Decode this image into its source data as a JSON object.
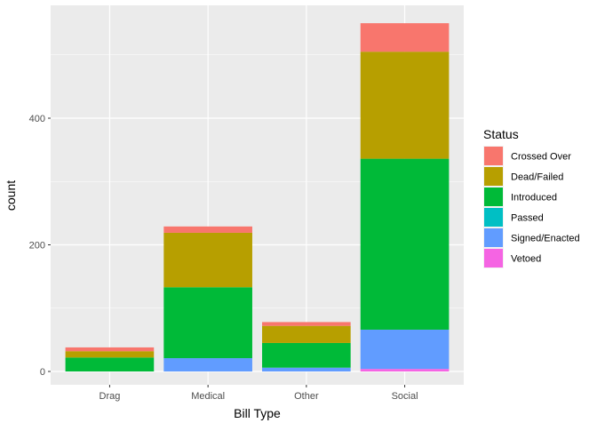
{
  "chart_data": {
    "type": "bar",
    "stacked": true,
    "xlabel": "Bill Type",
    "ylabel": "count",
    "categories": [
      "Drag",
      "Medical",
      "Other",
      "Social"
    ],
    "ylim": [
      -20,
      570
    ],
    "yticks": [
      0,
      200,
      400
    ],
    "grid": true,
    "legend_title": "Status",
    "legend_position": "right",
    "series": [
      {
        "name": "Vetoed",
        "color": "#F564E3",
        "values": [
          0,
          0,
          0,
          4
        ]
      },
      {
        "name": "Signed/Enacted",
        "color": "#619CFF",
        "values": [
          0,
          21,
          6,
          62
        ]
      },
      {
        "name": "Passed",
        "color": "#00BFC4",
        "values": [
          0,
          0,
          0,
          0
        ]
      },
      {
        "name": "Introduced",
        "color": "#00BA38",
        "values": [
          22,
          112,
          39,
          270
        ]
      },
      {
        "name": "Dead/Failed",
        "color": "#B79F00",
        "values": [
          10,
          86,
          27,
          169
        ]
      },
      {
        "name": "Crossed Over",
        "color": "#F8766D",
        "values": [
          6,
          10,
          6,
          45
        ]
      }
    ],
    "legend_order": [
      "Crossed Over",
      "Dead/Failed",
      "Introduced",
      "Passed",
      "Signed/Enacted",
      "Vetoed"
    ]
  }
}
